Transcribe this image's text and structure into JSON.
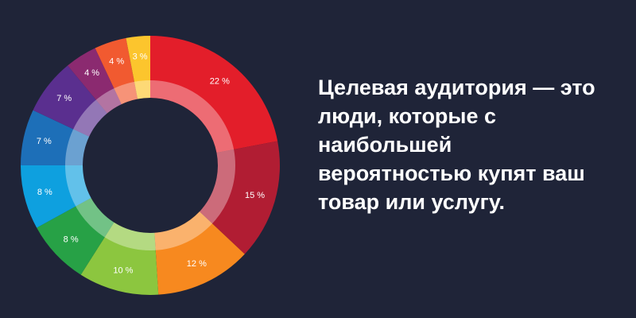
{
  "chart_data": {
    "type": "donut",
    "title": "Целевая аудитория — это люди, которые с наибольшей вероятностью купят ваш товар или услугу.",
    "values": [
      22,
      15,
      12,
      10,
      8,
      8,
      7,
      7,
      4,
      4,
      3
    ],
    "value_labels": [
      "22 %",
      "15 %",
      "12 %",
      "10 %",
      "8 %",
      "8 %",
      "7 %",
      "7 %",
      "4 %",
      "4 %",
      "3 %"
    ],
    "colors": [
      "#e31e2a",
      "#b11d33",
      "#f7891f",
      "#8cc63f",
      "#27a146",
      "#0ea0df",
      "#1d6fb8",
      "#5a2f8f",
      "#8b2a70",
      "#f15a30",
      "#fcc52d"
    ]
  }
}
